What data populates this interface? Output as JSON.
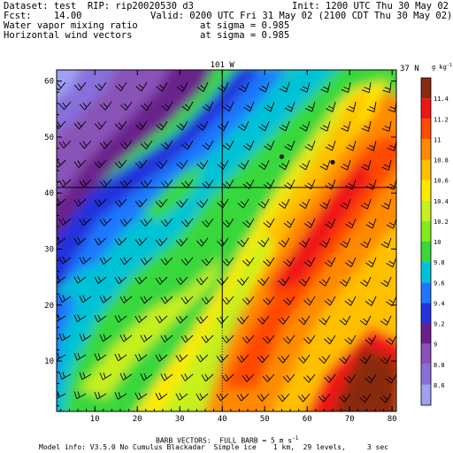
{
  "header": {
    "dataset_line": "Dataset: test  RIP: rip20020530 d3",
    "fcst_line": "Fcst:    14.00",
    "init_line": "Init: 1200 UTC Thu 30 May 02",
    "valid_line": "Valid: 0200 UTC Fri 31 May 02 (2100 CDT Thu 30 May 02)",
    "field1_line": "Water vapor mixing ratio",
    "field1_level": "at sigma = 0.985",
    "field2_line": "Horizontal wind vectors",
    "field2_level": "at sigma = 0.985"
  },
  "chart_data": {
    "type": "heatmap",
    "xlim": [
      1,
      81
    ],
    "ylim": [
      1,
      62
    ],
    "x_ticks": [
      10,
      20,
      30,
      40,
      50,
      60,
      70,
      80
    ],
    "y_ticks": [
      10,
      20,
      30,
      40,
      50,
      60
    ],
    "crosshair": {
      "x": 40,
      "y": 41,
      "top_label": "101 W",
      "right_label": "37 N"
    },
    "markers": [
      {
        "x": 54,
        "y": 46.5
      },
      {
        "x": 66,
        "y": 45.5
      }
    ],
    "colorbar": {
      "unit": "g kg",
      "ticks": [
        "8.6",
        "8.8",
        "9",
        "9.2",
        "9.4",
        "9.6",
        "9.8",
        "10",
        "10.2",
        "10.4",
        "10.6",
        "10.8",
        "11",
        "11.2",
        "11.4"
      ],
      "colors": [
        "#a0a0f0",
        "#8870dc",
        "#8a52b8",
        "#6a208c",
        "#2433dc",
        "#1e78ff",
        "#00c2d6",
        "#38d83c",
        "#82ec1e",
        "#c8f01e",
        "#ffea00",
        "#ffc000",
        "#ff8a00",
        "#ff4a00",
        "#f01414",
        "#8a2a10"
      ]
    },
    "footer_title": "BARB VECTORS:  FULL BARB = 5 m s",
    "footer_model": "Model info: V3.5.0 No Cumulus Blackadar  Simple ice    1 km,  29 levels,     3 sec"
  }
}
